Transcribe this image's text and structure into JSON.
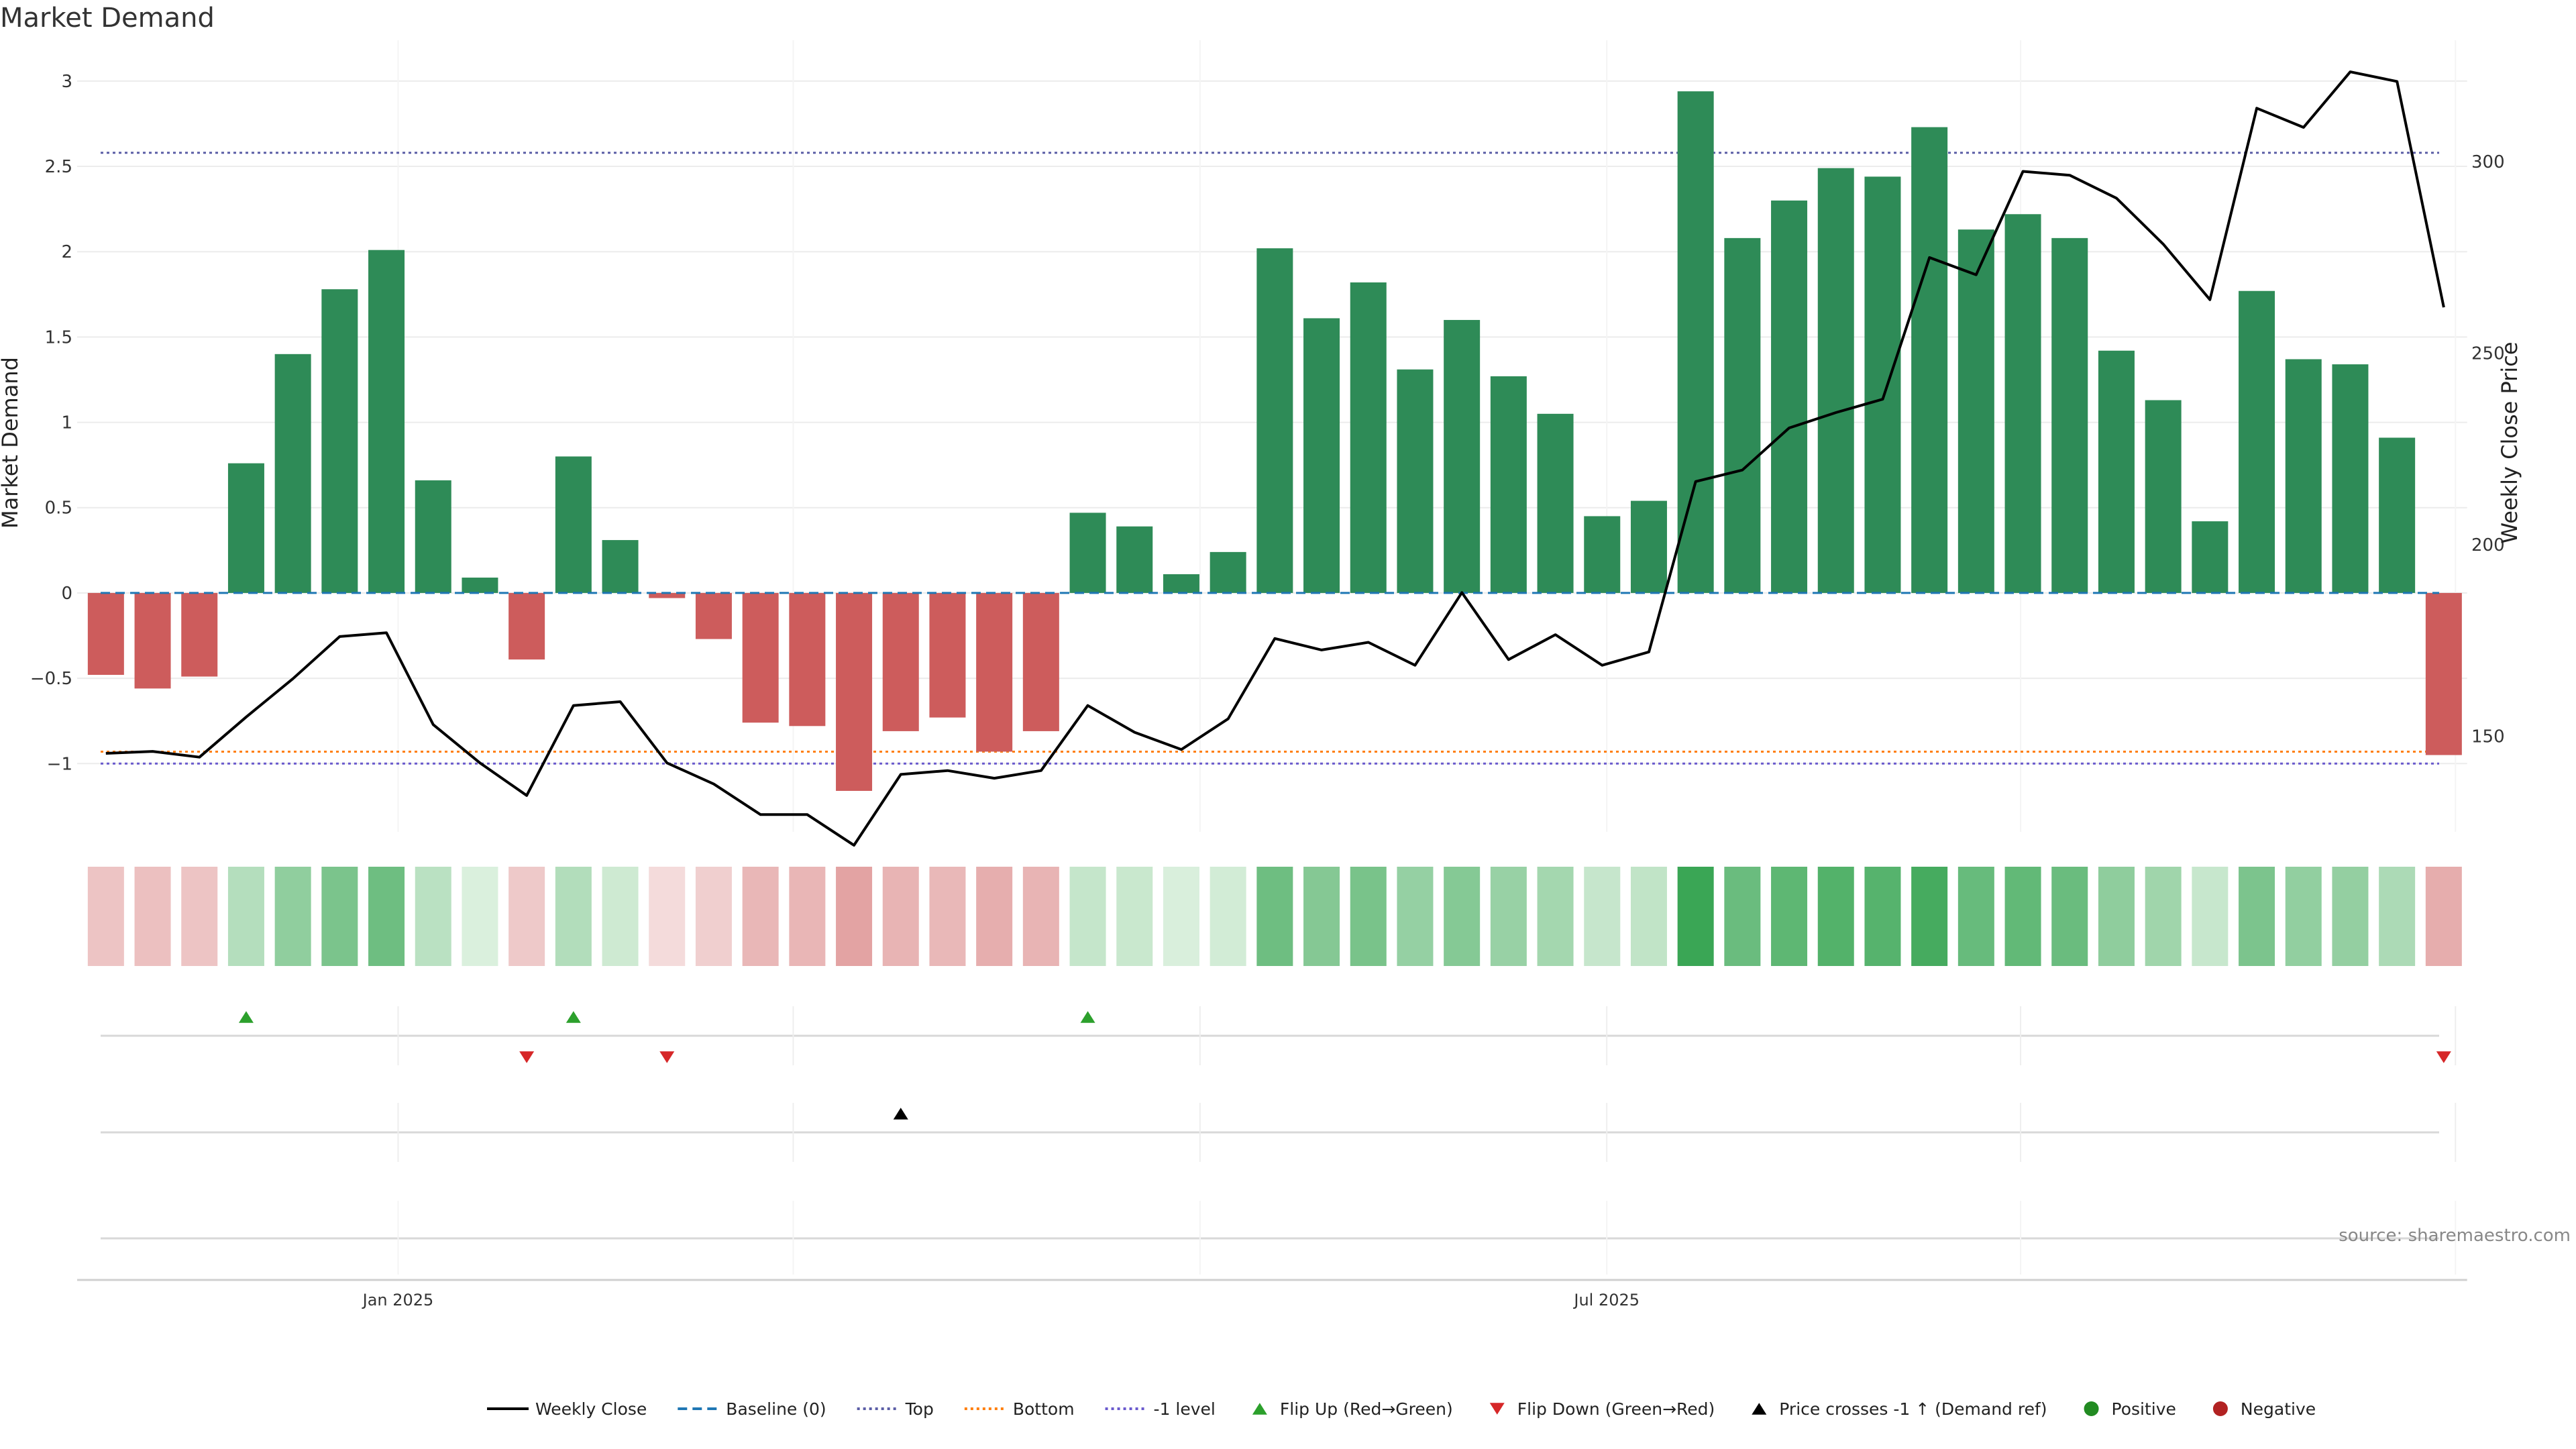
{
  "chart_data": {
    "type": "bar",
    "title": "Market Demand",
    "ylabel_left": "Market Demand",
    "ylabel_right": "Weekly Close Price",
    "ylim_left": [
      -1.4,
      3.2
    ],
    "ylim_right": [
      125,
      330
    ],
    "yticks_left": [
      {
        "value": -1,
        "label": "−1"
      },
      {
        "value": -0.5,
        "label": "−0.5"
      },
      {
        "value": 0,
        "label": "0"
      },
      {
        "value": 0.5,
        "label": "0.5"
      },
      {
        "value": 1,
        "label": "1"
      },
      {
        "value": 1.5,
        "label": "1.5"
      },
      {
        "value": 2,
        "label": "2"
      },
      {
        "value": 2.5,
        "label": "2.5"
      },
      {
        "value": 3,
        "label": "3"
      }
    ],
    "yticks_right": [
      {
        "value": 150,
        "label": "150"
      },
      {
        "value": 200,
        "label": "200"
      },
      {
        "value": 250,
        "label": "250"
      },
      {
        "value": 300,
        "label": "300"
      }
    ],
    "x_ticks": [
      {
        "index": 6.75,
        "label": "Jan 2025"
      },
      {
        "index": 32.6,
        "label": "Jul 2025"
      }
    ],
    "x_minor_gridlines": [
      6.75,
      15.2,
      23.9,
      32.6,
      41.45,
      50.75
    ],
    "reference_lines": {
      "baseline": 0,
      "top": 2.58,
      "bottom": -0.93,
      "minus_one_level": -1
    },
    "demand": [
      -0.48,
      -0.56,
      -0.49,
      0.76,
      1.4,
      1.78,
      2.01,
      0.66,
      0.09,
      -0.39,
      0.8,
      0.31,
      -0.03,
      -0.27,
      -0.76,
      -0.78,
      -1.16,
      -0.81,
      -0.73,
      -0.93,
      -0.81,
      0.47,
      0.39,
      0.11,
      0.24,
      2.02,
      1.61,
      1.82,
      1.31,
      1.6,
      1.27,
      1.05,
      0.45,
      0.54,
      2.94,
      2.08,
      2.3,
      2.49,
      2.44,
      2.73,
      2.13,
      2.22,
      2.08,
      1.42,
      1.13,
      0.42,
      1.77,
      1.37,
      1.34,
      0.91,
      -0.95
    ],
    "weekly_close": [
      145.5,
      146.0,
      144.5,
      155.0,
      165.0,
      176.0,
      177.0,
      153.0,
      143.0,
      134.5,
      158.0,
      159.0,
      143.0,
      137.5,
      129.5,
      129.5,
      121.5,
      140.0,
      141.0,
      139.0,
      141.0,
      158.0,
      151.0,
      146.5,
      154.5,
      175.5,
      172.5,
      174.5,
      168.5,
      187.5,
      170.0,
      176.5,
      168.5,
      172.0,
      216.5,
      219.5,
      230.5,
      234.5,
      238.0,
      275.0,
      270.5,
      297.5,
      296.5,
      290.5,
      278.5,
      264.0,
      314.0,
      309.0,
      323.5,
      321.0,
      262.0
    ],
    "flip_up_indices": [
      3,
      10,
      21
    ],
    "flip_down_indices": [
      9,
      12,
      50
    ],
    "price_cross_indices": [
      17
    ],
    "colors": {
      "positive": "#2e8b57",
      "negative": "#cd5c5c",
      "line": "#000000",
      "baseline": "#1f77b4",
      "top": "#5b5ea6",
      "bottom": "#ff7f0e",
      "minus_one": "#6a5acd",
      "flip_up": "#2ca02c",
      "flip_down": "#d62728",
      "cross": "#000000",
      "positive_marker": "#228b22",
      "negative_marker": "#b22222"
    },
    "legend": [
      {
        "type": "line",
        "label": "Weekly Close",
        "color": "#000000",
        "dash": ""
      },
      {
        "type": "line",
        "label": "Baseline (0)",
        "color": "#1f77b4",
        "dash": "14,8"
      },
      {
        "type": "line",
        "label": "Top",
        "color": "#5b5ea6",
        "dash": "4,5"
      },
      {
        "type": "line",
        "label": "Bottom",
        "color": "#ff7f0e",
        "dash": "4,5"
      },
      {
        "type": "line",
        "label": "-1 level",
        "color": "#6a5acd",
        "dash": "4,5"
      },
      {
        "type": "triangle-up",
        "label": "Flip Up (Red→Green)",
        "color": "#2ca02c"
      },
      {
        "type": "triangle-down",
        "label": "Flip Down (Green→Red)",
        "color": "#d62728"
      },
      {
        "type": "triangle-up",
        "label": "Price crosses -1 ↑ (Demand ref)",
        "color": "#000000"
      },
      {
        "type": "circle",
        "label": "Positive",
        "color": "#228b22"
      },
      {
        "type": "circle",
        "label": "Negative",
        "color": "#b22222"
      }
    ],
    "source": "source: sharemaestro.com"
  }
}
